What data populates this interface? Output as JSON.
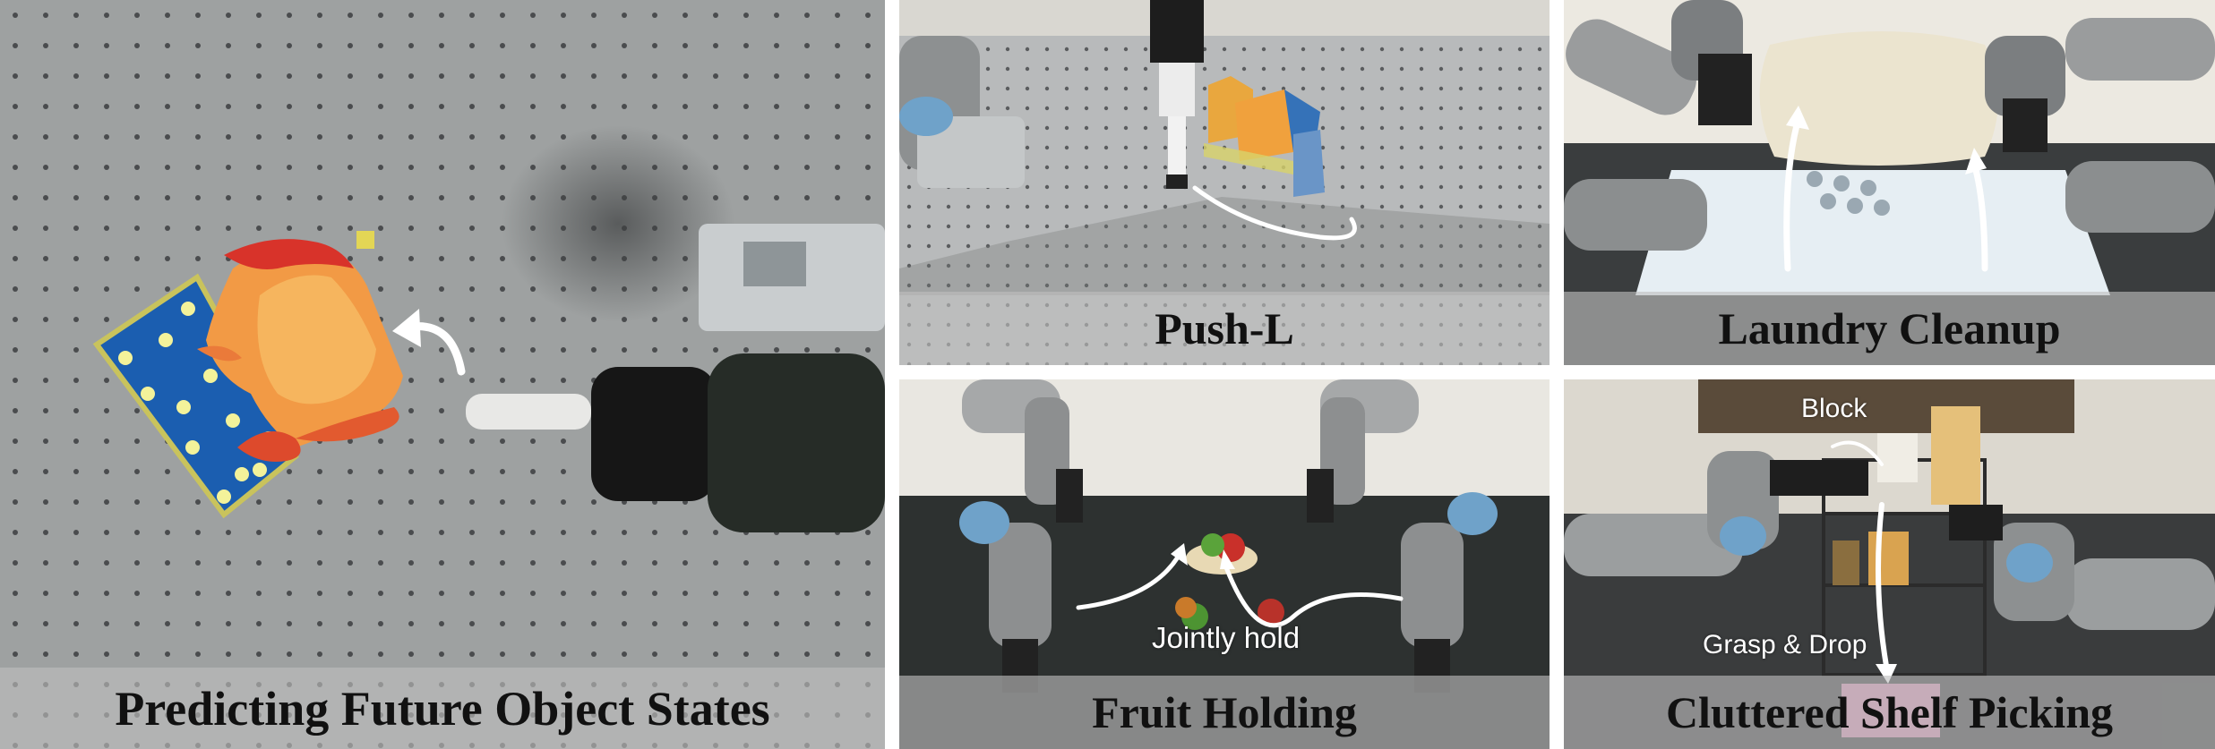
{
  "panels": {
    "predicting": {
      "caption": "Predicting Future Object States"
    },
    "push_l": {
      "caption": "Push-L"
    },
    "laundry": {
      "caption": "Laundry Cleanup"
    },
    "fruit": {
      "caption": "Fruit Holding",
      "label": "Jointly hold"
    },
    "shelf": {
      "caption": "Cluttered Shelf Picking",
      "label_block": "Block",
      "label_grasp": "Grasp & Drop"
    }
  },
  "colors": {
    "table": "#9d9fa0",
    "board_blue": "#1a5fb0",
    "flame_orange": "#f08a3a",
    "flame_red": "#d8332a",
    "arrow": "#ffffff",
    "mat": "#2c302f"
  }
}
